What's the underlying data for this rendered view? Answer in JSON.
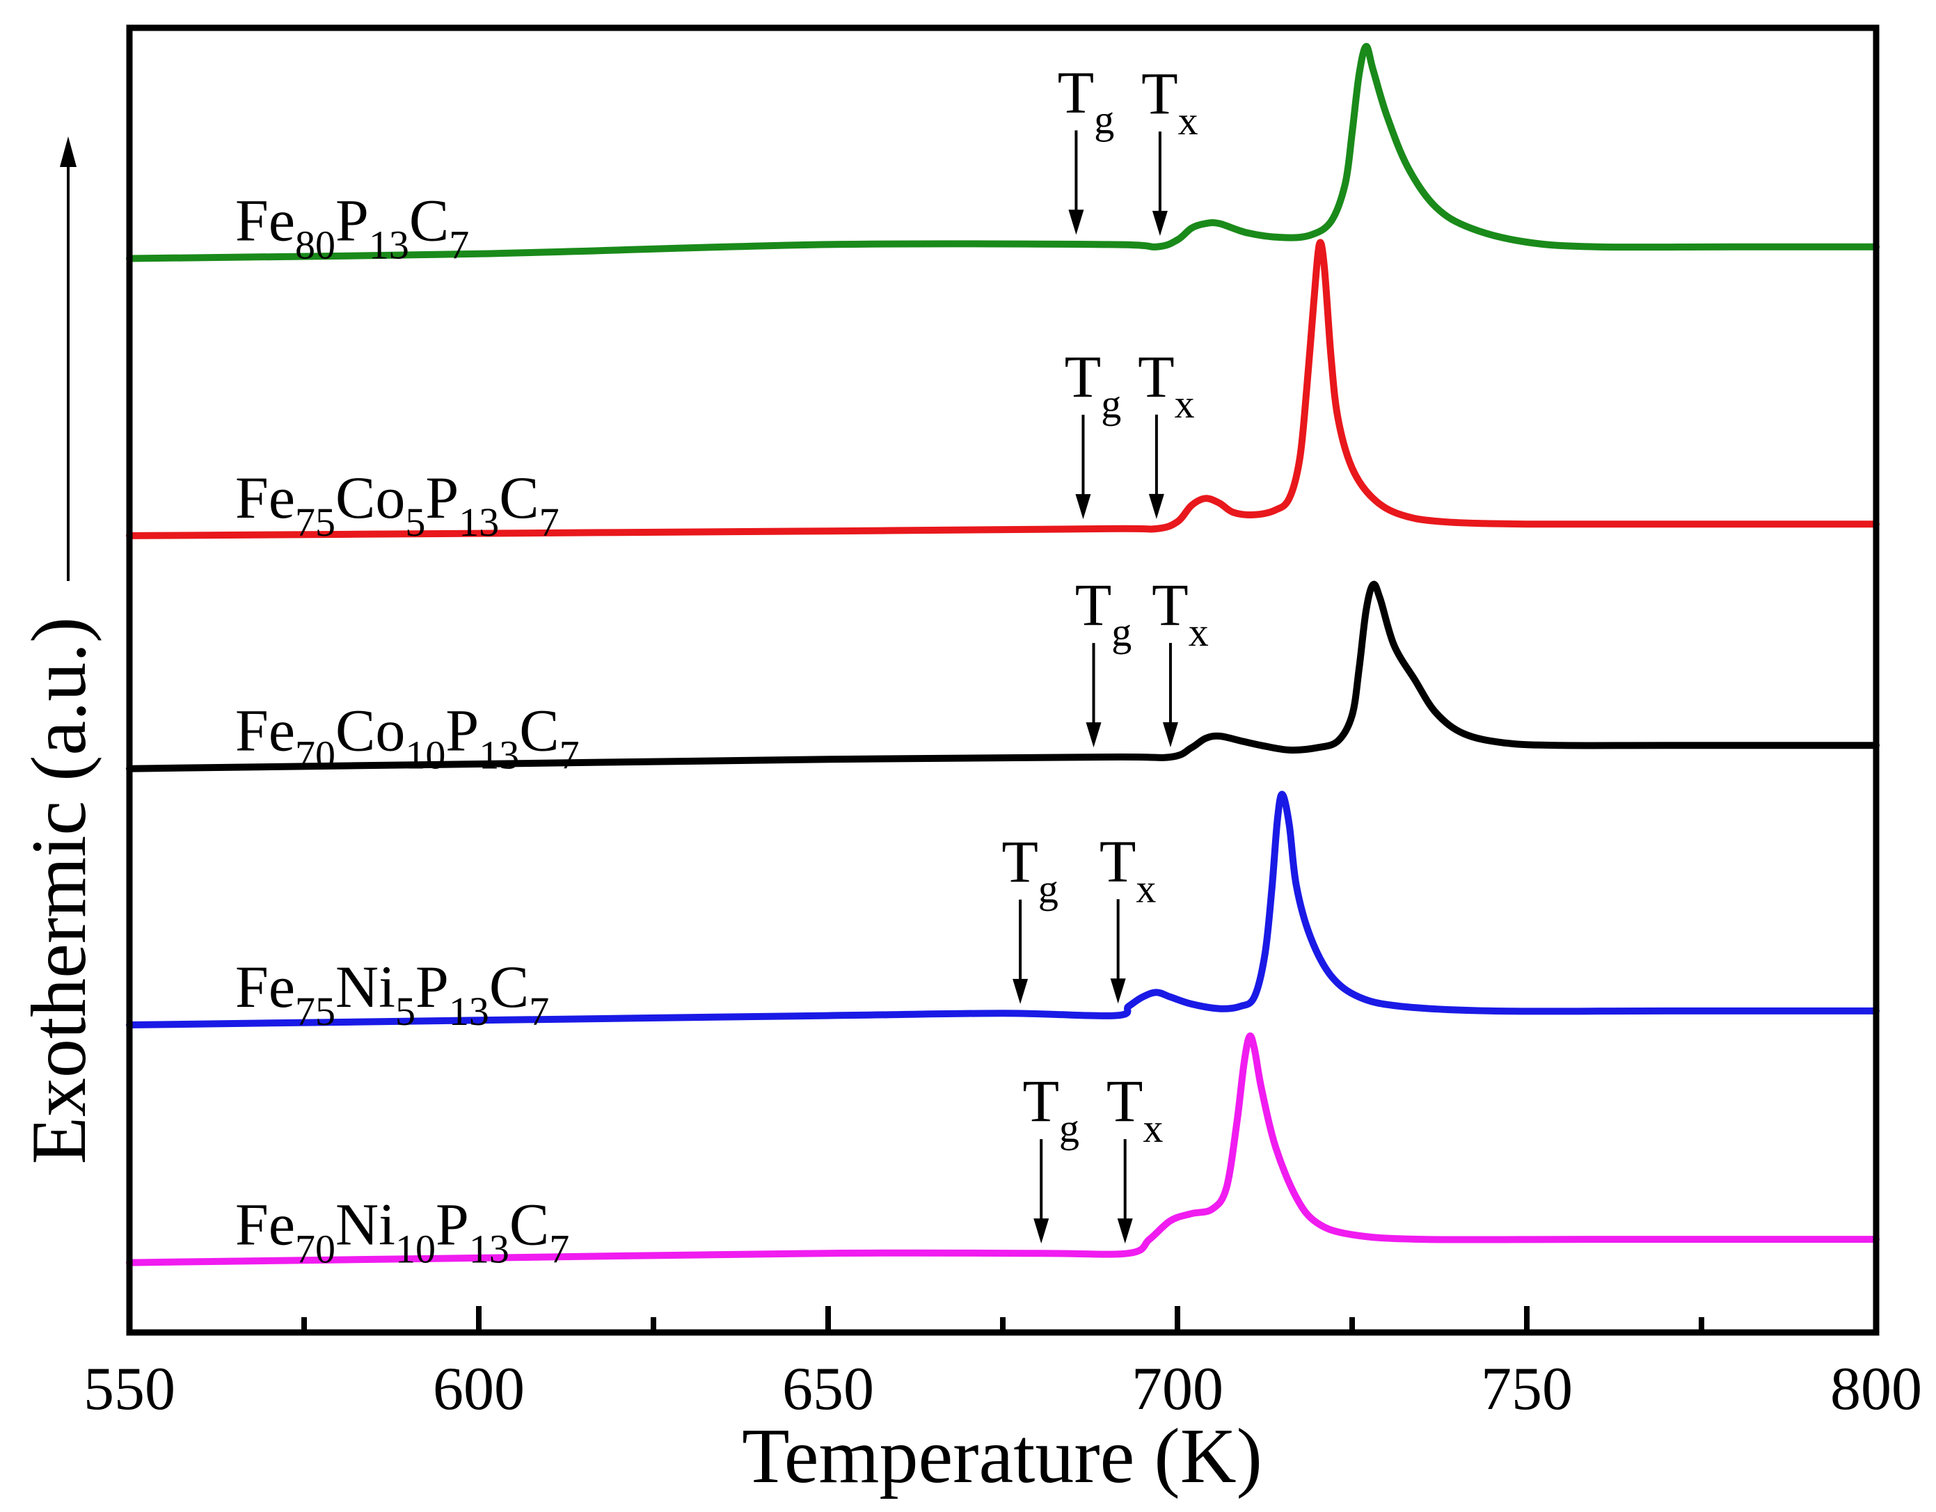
{
  "chart_data": {
    "type": "line",
    "title": "",
    "xlabel": "Temperature (K)",
    "ylabel": "Exothermic (a.u.)",
    "xlim": [
      550,
      800
    ],
    "ylim": [
      0,
      5.6
    ],
    "major_ticks": [
      550,
      600,
      650,
      700,
      750,
      800
    ],
    "tick_labels": [
      "550",
      "600",
      "650",
      "700",
      "750",
      "800"
    ],
    "minor_ticks": [
      575,
      625,
      675,
      725,
      775
    ],
    "grid": false,
    "legend": "none (inline labels left of each curve)",
    "series": [
      {
        "name": "Fe80P13C7",
        "label_parts": [
          [
            "Fe",
            ""
          ],
          [
            "80",
            "sub"
          ],
          [
            "P",
            ""
          ],
          [
            "13",
            "sub"
          ],
          [
            "C",
            ""
          ],
          [
            "7",
            "sub"
          ]
        ],
        "color": "#1a8a1a",
        "tg": 685.5,
        "tx": 697.5,
        "tg_text": "T",
        "tg_sub": "g",
        "tx_text": "T",
        "tx_sub": "x",
        "points": [
          [
            550,
            4.61
          ],
          [
            600,
            4.63
          ],
          [
            650,
            4.67
          ],
          [
            690,
            4.67
          ],
          [
            697,
            4.66
          ],
          [
            700,
            4.69
          ],
          [
            702,
            4.74
          ],
          [
            704,
            4.76
          ],
          [
            706,
            4.76
          ],
          [
            710,
            4.72
          ],
          [
            715,
            4.7
          ],
          [
            719,
            4.71
          ],
          [
            722,
            4.77
          ],
          [
            724,
            4.93
          ],
          [
            725,
            5.15
          ],
          [
            726,
            5.4
          ],
          [
            727,
            5.52
          ],
          [
            728,
            5.42
          ],
          [
            730,
            5.22
          ],
          [
            733,
            5.0
          ],
          [
            737,
            4.83
          ],
          [
            742,
            4.74
          ],
          [
            750,
            4.68
          ],
          [
            760,
            4.66
          ],
          [
            780,
            4.66
          ],
          [
            800,
            4.66
          ]
        ]
      },
      {
        "name": "Fe75Co5P13C7",
        "label_parts": [
          [
            "Fe",
            ""
          ],
          [
            "75",
            "sub"
          ],
          [
            "Co",
            ""
          ],
          [
            "5",
            "sub"
          ],
          [
            "P",
            ""
          ],
          [
            "13",
            "sub"
          ],
          [
            "C",
            ""
          ],
          [
            "7",
            "sub"
          ]
        ],
        "color": "#e8181c",
        "tg": 686.5,
        "tx": 697.0,
        "tg_text": "T",
        "tg_sub": "g",
        "tx_text": "T",
        "tx_sub": "x",
        "points": [
          [
            550,
            3.42
          ],
          [
            600,
            3.43
          ],
          [
            650,
            3.44
          ],
          [
            690,
            3.45
          ],
          [
            697,
            3.45
          ],
          [
            700,
            3.48
          ],
          [
            702,
            3.55
          ],
          [
            704,
            3.58
          ],
          [
            706,
            3.56
          ],
          [
            708,
            3.52
          ],
          [
            711,
            3.51
          ],
          [
            714,
            3.53
          ],
          [
            716,
            3.58
          ],
          [
            717.5,
            3.75
          ],
          [
            718.5,
            4.05
          ],
          [
            719.5,
            4.42
          ],
          [
            720.3,
            4.67
          ],
          [
            721,
            4.58
          ],
          [
            722,
            4.18
          ],
          [
            723,
            3.92
          ],
          [
            725,
            3.71
          ],
          [
            728,
            3.58
          ],
          [
            732,
            3.51
          ],
          [
            738,
            3.48
          ],
          [
            750,
            3.47
          ],
          [
            770,
            3.47
          ],
          [
            800,
            3.47
          ]
        ]
      },
      {
        "name": "Fe70Co10P13C7",
        "label_parts": [
          [
            "Fe",
            ""
          ],
          [
            "70",
            "sub"
          ],
          [
            "Co",
            ""
          ],
          [
            "10",
            "sub"
          ],
          [
            "P",
            ""
          ],
          [
            "13",
            "sub"
          ],
          [
            "C",
            ""
          ],
          [
            "7",
            "sub"
          ]
        ],
        "color": "#000000",
        "tg": 688.0,
        "tx": 699.0,
        "tg_text": "T",
        "tg_sub": "g",
        "tx_text": "T",
        "tx_sub": "x",
        "points": [
          [
            550,
            2.42
          ],
          [
            600,
            2.44
          ],
          [
            650,
            2.46
          ],
          [
            690,
            2.47
          ],
          [
            699,
            2.47
          ],
          [
            702,
            2.51
          ],
          [
            704,
            2.55
          ],
          [
            706,
            2.56
          ],
          [
            709,
            2.54
          ],
          [
            712,
            2.52
          ],
          [
            716,
            2.5
          ],
          [
            720,
            2.51
          ],
          [
            723,
            2.54
          ],
          [
            725,
            2.65
          ],
          [
            726,
            2.85
          ],
          [
            727,
            3.1
          ],
          [
            728,
            3.21
          ],
          [
            729,
            3.15
          ],
          [
            731,
            2.95
          ],
          [
            734,
            2.8
          ],
          [
            737,
            2.66
          ],
          [
            741,
            2.57
          ],
          [
            747,
            2.53
          ],
          [
            755,
            2.52
          ],
          [
            770,
            2.52
          ],
          [
            800,
            2.52
          ]
        ]
      },
      {
        "name": "Fe75Ni5P13C7",
        "label_parts": [
          [
            "Fe",
            ""
          ],
          [
            "75",
            "sub"
          ],
          [
            "Ni",
            ""
          ],
          [
            "5",
            "sub"
          ],
          [
            "P",
            ""
          ],
          [
            "13",
            "sub"
          ],
          [
            "C",
            ""
          ],
          [
            "7",
            "sub"
          ]
        ],
        "color": "#1a1ae6",
        "tg": 677.5,
        "tx": 691.5,
        "tg_text": "T",
        "tg_sub": "g",
        "tx_text": "T",
        "tx_sub": "x",
        "points": [
          [
            550,
            1.32
          ],
          [
            600,
            1.34
          ],
          [
            650,
            1.36
          ],
          [
            675,
            1.37
          ],
          [
            691,
            1.36
          ],
          [
            693,
            1.4
          ],
          [
            695,
            1.44
          ],
          [
            697,
            1.46
          ],
          [
            699,
            1.44
          ],
          [
            702,
            1.41
          ],
          [
            706,
            1.39
          ],
          [
            709,
            1.4
          ],
          [
            711,
            1.44
          ],
          [
            712.5,
            1.62
          ],
          [
            713.5,
            1.9
          ],
          [
            714.3,
            2.2
          ],
          [
            715,
            2.31
          ],
          [
            716,
            2.18
          ],
          [
            717,
            1.92
          ],
          [
            719,
            1.7
          ],
          [
            722,
            1.53
          ],
          [
            726,
            1.44
          ],
          [
            732,
            1.4
          ],
          [
            745,
            1.38
          ],
          [
            770,
            1.38
          ],
          [
            800,
            1.38
          ]
        ]
      },
      {
        "name": "Fe70Ni10P13C7",
        "label_parts": [
          [
            "Fe",
            ""
          ],
          [
            "70",
            "sub"
          ],
          [
            "Ni",
            ""
          ],
          [
            "10",
            "sub"
          ],
          [
            "P",
            ""
          ],
          [
            "13",
            "sub"
          ],
          [
            "C",
            ""
          ],
          [
            "7",
            "sub"
          ]
        ],
        "color": "#f01cf0",
        "tg": 680.5,
        "tx": 692.5,
        "tg_text": "T",
        "tg_sub": "g",
        "tx_text": "T",
        "tx_sub": "x",
        "points": [
          [
            550,
            0.3
          ],
          [
            600,
            0.32
          ],
          [
            650,
            0.34
          ],
          [
            680,
            0.34
          ],
          [
            693,
            0.34
          ],
          [
            696,
            0.4
          ],
          [
            699,
            0.48
          ],
          [
            702,
            0.51
          ],
          [
            705,
            0.53
          ],
          [
            707,
            0.62
          ],
          [
            708.5,
            0.9
          ],
          [
            709.5,
            1.15
          ],
          [
            710.3,
            1.27
          ],
          [
            711,
            1.22
          ],
          [
            712,
            1.05
          ],
          [
            714,
            0.8
          ],
          [
            717,
            0.58
          ],
          [
            720,
            0.47
          ],
          [
            725,
            0.42
          ],
          [
            735,
            0.4
          ],
          [
            760,
            0.4
          ],
          [
            800,
            0.4
          ]
        ]
      }
    ]
  }
}
